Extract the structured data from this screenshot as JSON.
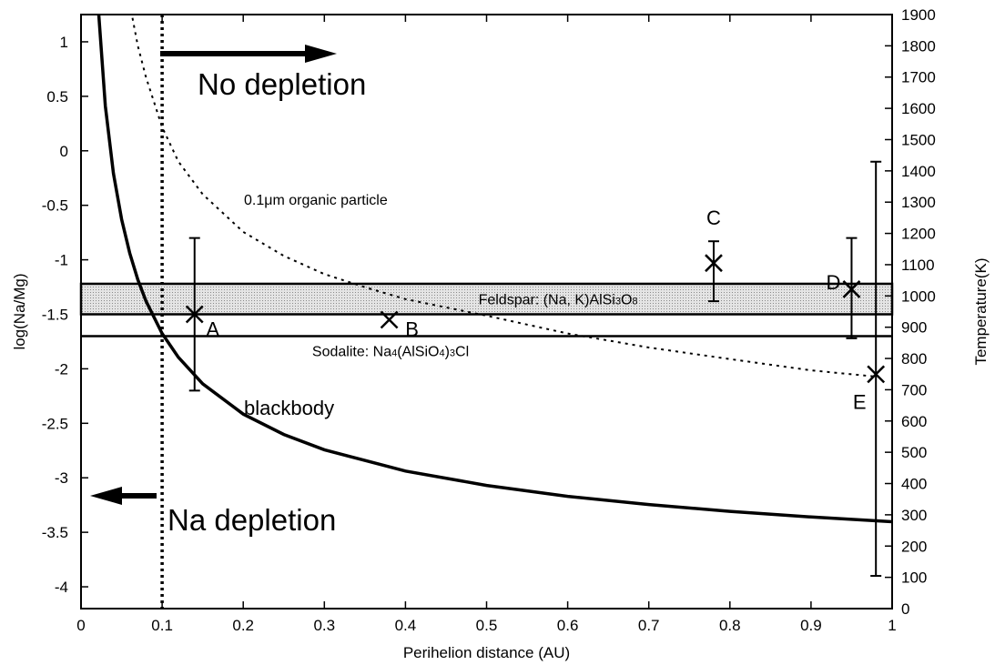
{
  "chart_data": {
    "type": "line",
    "xlabel": "Perihelion distance (AU)",
    "ylabel": "log(Na/Mg)",
    "y2label": "Temperature(K)",
    "xlim": [
      0,
      1
    ],
    "ylim": [
      -4.2,
      1.25
    ],
    "y2lim": [
      0,
      1900
    ],
    "grid": false,
    "x_ticks": [
      "0",
      "0.1",
      "0.2",
      "0.3",
      "0.4",
      "0.5",
      "0.6",
      "0.7",
      "0.8",
      "0.9",
      "1"
    ],
    "y_ticks": [
      "1",
      "0.5",
      "0",
      "-0.5",
      "-1",
      "-1.5",
      "-2",
      "-2.5",
      "-3",
      "-3.5",
      "-4"
    ],
    "y2_ticks": [
      "1900",
      "1800",
      "1700",
      "1600",
      "1500",
      "1400",
      "1300",
      "1200",
      "1100",
      "1000",
      "900",
      "800",
      "700",
      "600",
      "500",
      "400",
      "300",
      "200",
      "100",
      "0"
    ],
    "series": [
      {
        "name": "blackbody",
        "axis": "temperature",
        "style": "solid",
        "x": [
          0.0145,
          0.02,
          0.03,
          0.04,
          0.05,
          0.06,
          0.07,
          0.08,
          0.1,
          0.12,
          0.15,
          0.2,
          0.25,
          0.3,
          0.4,
          0.5,
          0.6,
          0.7,
          0.8,
          0.9,
          1.0
        ],
        "y": [
          2312,
          1969,
          1608,
          1392,
          1245,
          1137,
          1052,
          984,
          880,
          804,
          719,
          622,
          557,
          508,
          440,
          394,
          359,
          333,
          311,
          293,
          278
        ]
      },
      {
        "name": "0.1μm organic particle",
        "axis": "temperature",
        "style": "dotted",
        "x": [
          0.06,
          0.07,
          0.08,
          0.09,
          0.1,
          0.12,
          0.15,
          0.2,
          0.25,
          0.3,
          0.35,
          0.4,
          0.5,
          0.6,
          0.7,
          0.8,
          0.9,
          0.98
        ],
        "y": [
          1935,
          1800,
          1700,
          1620,
          1540,
          1430,
          1325,
          1205,
          1128,
          1070,
          1028,
          990,
          937,
          880,
          835,
          798,
          762,
          742
        ]
      }
    ],
    "bands": [
      {
        "label": "Feldspar: (Na, K)AlSi3O8",
        "y_from": -1.5,
        "y_to": -1.22,
        "fill": "#d4d4d4"
      },
      {
        "label": "Sodalite: Na4(AlSiO4)3Cl",
        "y": -1.7
      }
    ],
    "points": [
      {
        "label": "A",
        "x": 0.14,
        "y": -1.5,
        "err_low": -2.2,
        "err_high": -0.8
      },
      {
        "label": "B",
        "x": 0.38,
        "y": -1.55
      },
      {
        "label": "C",
        "x": 0.78,
        "y": -1.03,
        "err_low": -1.38,
        "err_high": -0.83
      },
      {
        "label": "D",
        "x": 0.95,
        "y": -1.27,
        "err_low": -1.72,
        "err_high": -0.8
      },
      {
        "label": "E",
        "x": 0.98,
        "y": -2.05,
        "err_low": -3.9,
        "err_high": -0.1
      }
    ],
    "threshold": {
      "x": 0.1,
      "style": "dotted"
    },
    "annotations": [
      {
        "text": "No depletion",
        "arrow": "right"
      },
      {
        "text": "Na depletion",
        "arrow": "left"
      },
      {
        "text": "blackbody"
      },
      {
        "text": "0.1μm organic particle"
      }
    ]
  }
}
